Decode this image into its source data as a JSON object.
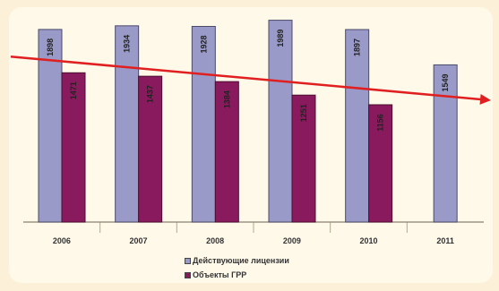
{
  "chart_data": {
    "type": "bar",
    "categories": [
      "2006",
      "2007",
      "2008",
      "2009",
      "2010",
      "2011"
    ],
    "series": [
      {
        "name": "Действующие лицензии",
        "values": [
          1898,
          1934,
          1928,
          1989,
          1897,
          1549
        ],
        "color": "#9a9ac8"
      },
      {
        "name": "Объекты ГРР",
        "values": [
          1471,
          1437,
          1384,
          1251,
          1156,
          null
        ],
        "color": "#8a1a5e"
      }
    ],
    "data_labels": [
      [
        "1898",
        "1934",
        "1928",
        "1989",
        "1897",
        "1549"
      ],
      [
        "1471",
        "1437",
        "1384",
        "1251",
        "1156",
        ""
      ]
    ],
    "trendline": {
      "start": 1630,
      "end": 1200,
      "color": "#e02020"
    },
    "ylim": [
      0,
      2100
    ],
    "grid": false,
    "legend_position": "bottom-center"
  },
  "legend": {
    "item1": "Действующие лицензии",
    "item2": "Объекты ГРР"
  }
}
